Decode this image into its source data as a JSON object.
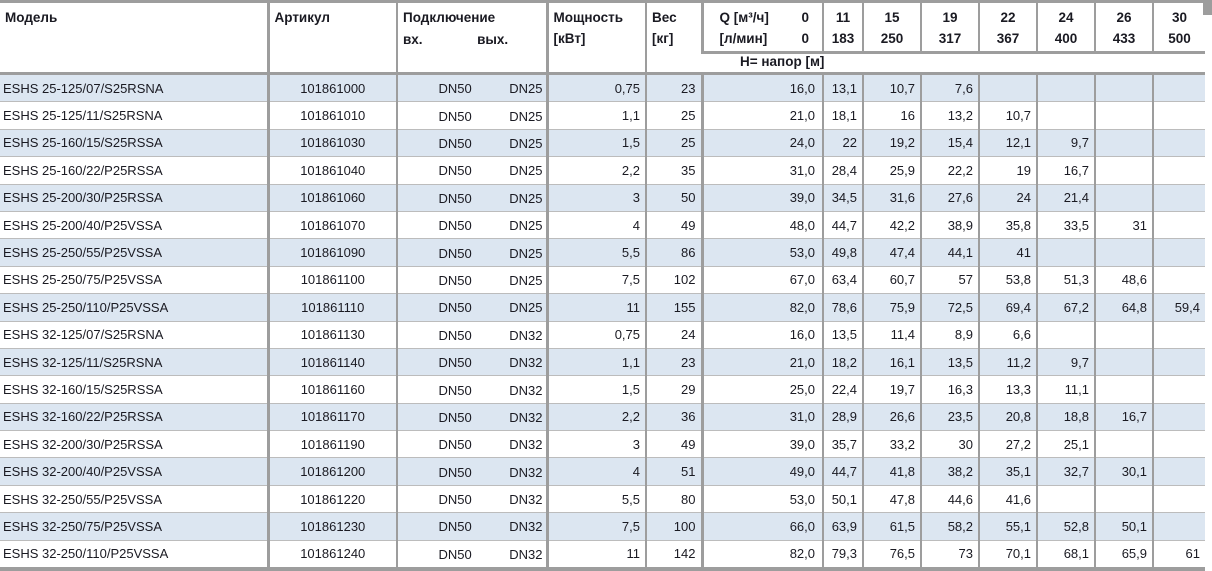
{
  "colors": {
    "stripe": "#dce6f1",
    "grid": "#9d9d9d",
    "text": "#1a1a22"
  },
  "table": {
    "headers": {
      "model": "Модель",
      "article": "Артикул",
      "connection": "Подключение",
      "inlet": "вх.",
      "outlet": "вых.",
      "power_line1": "Мощность",
      "power_line2": "[кВт]",
      "weight_line1": "Вес",
      "weight_line2": "[кг]",
      "q_label_line1": "Q [м³/ч]",
      "q_zero_line1": "0",
      "q_label_line2": "[л/мин]",
      "q_zero_line2": "0",
      "flow_cols": [
        {
          "m3h": "11",
          "lmin": "183"
        },
        {
          "m3h": "15",
          "lmin": "250"
        },
        {
          "m3h": "19",
          "lmin": "317"
        },
        {
          "m3h": "22",
          "lmin": "367"
        },
        {
          "m3h": "24",
          "lmin": "400"
        },
        {
          "m3h": "26",
          "lmin": "433"
        },
        {
          "m3h": "30",
          "lmin": "500"
        }
      ],
      "head_label": "H= напор [м]"
    },
    "rows": [
      {
        "model": "ESHS 25-125/07/S25RSNA",
        "article": "101861000",
        "inlet": "DN50",
        "outlet": "DN25",
        "power": "0,75",
        "weight": "23",
        "heads": [
          "16,0",
          "13,1",
          "10,7",
          "7,6",
          "",
          "",
          "",
          ""
        ]
      },
      {
        "model": "ESHS 25-125/11/S25RSNA",
        "article": "101861010",
        "inlet": "DN50",
        "outlet": "DN25",
        "power": "1,1",
        "weight": "25",
        "heads": [
          "21,0",
          "18,1",
          "16",
          "13,2",
          "10,7",
          "",
          "",
          ""
        ]
      },
      {
        "model": "ESHS 25-160/15/S25RSSA",
        "article": "101861030",
        "inlet": "DN50",
        "outlet": "DN25",
        "power": "1,5",
        "weight": "25",
        "heads": [
          "24,0",
          "22",
          "19,2",
          "15,4",
          "12,1",
          "9,7",
          "",
          ""
        ]
      },
      {
        "model": "ESHS 25-160/22/P25RSSA",
        "article": "101861040",
        "inlet": "DN50",
        "outlet": "DN25",
        "power": "2,2",
        "weight": "35",
        "heads": [
          "31,0",
          "28,4",
          "25,9",
          "22,2",
          "19",
          "16,7",
          "",
          ""
        ]
      },
      {
        "model": "ESHS 25-200/30/P25RSSA",
        "article": "101861060",
        "inlet": "DN50",
        "outlet": "DN25",
        "power": "3",
        "weight": "50",
        "heads": [
          "39,0",
          "34,5",
          "31,6",
          "27,6",
          "24",
          "21,4",
          "",
          ""
        ]
      },
      {
        "model": "ESHS 25-200/40/P25VSSA",
        "article": "101861070",
        "inlet": "DN50",
        "outlet": "DN25",
        "power": "4",
        "weight": "49",
        "heads": [
          "48,0",
          "44,7",
          "42,2",
          "38,9",
          "35,8",
          "33,5",
          "31",
          ""
        ]
      },
      {
        "model": "ESHS 25-250/55/P25VSSA",
        "article": "101861090",
        "inlet": "DN50",
        "outlet": "DN25",
        "power": "5,5",
        "weight": "86",
        "heads": [
          "53,0",
          "49,8",
          "47,4",
          "44,1",
          "41",
          "",
          "",
          ""
        ]
      },
      {
        "model": "ESHS 25-250/75/P25VSSA",
        "article": "101861100",
        "inlet": "DN50",
        "outlet": "DN25",
        "power": "7,5",
        "weight": "102",
        "heads": [
          "67,0",
          "63,4",
          "60,7",
          "57",
          "53,8",
          "51,3",
          "48,6",
          ""
        ]
      },
      {
        "model": "ESHS 25-250/110/P25VSSA",
        "article": "101861110",
        "inlet": "DN50",
        "outlet": "DN25",
        "power": "11",
        "weight": "155",
        "heads": [
          "82,0",
          "78,6",
          "75,9",
          "72,5",
          "69,4",
          "67,2",
          "64,8",
          "59,4"
        ]
      },
      {
        "model": "ESHS 32-125/07/S25RSNA",
        "article": "101861130",
        "inlet": "DN50",
        "outlet": "DN32",
        "power": "0,75",
        "weight": "24",
        "heads": [
          "16,0",
          "13,5",
          "11,4",
          "8,9",
          "6,6",
          "",
          "",
          ""
        ]
      },
      {
        "model": "ESHS 32-125/11/S25RSNA",
        "article": "101861140",
        "inlet": "DN50",
        "outlet": "DN32",
        "power": "1,1",
        "weight": "23",
        "heads": [
          "21,0",
          "18,2",
          "16,1",
          "13,5",
          "11,2",
          "9,7",
          "",
          ""
        ]
      },
      {
        "model": "ESHS 32-160/15/S25RSSA",
        "article": "101861160",
        "inlet": "DN50",
        "outlet": "DN32",
        "power": "1,5",
        "weight": "29",
        "heads": [
          "25,0",
          "22,4",
          "19,7",
          "16,3",
          "13,3",
          "11,1",
          "",
          ""
        ]
      },
      {
        "model": "ESHS 32-160/22/P25RSSA",
        "article": "101861170",
        "inlet": "DN50",
        "outlet": "DN32",
        "power": "2,2",
        "weight": "36",
        "heads": [
          "31,0",
          "28,9",
          "26,6",
          "23,5",
          "20,8",
          "18,8",
          "16,7",
          ""
        ]
      },
      {
        "model": "ESHS 32-200/30/P25RSSA",
        "article": "101861190",
        "inlet": "DN50",
        "outlet": "DN32",
        "power": "3",
        "weight": "49",
        "heads": [
          "39,0",
          "35,7",
          "33,2",
          "30",
          "27,2",
          "25,1",
          "",
          ""
        ]
      },
      {
        "model": "ESHS 32-200/40/P25VSSA",
        "article": "101861200",
        "inlet": "DN50",
        "outlet": "DN32",
        "power": "4",
        "weight": "51",
        "heads": [
          "49,0",
          "44,7",
          "41,8",
          "38,2",
          "35,1",
          "32,7",
          "30,1",
          ""
        ]
      },
      {
        "model": "ESHS 32-250/55/P25VSSA",
        "article": "101861220",
        "inlet": "DN50",
        "outlet": "DN32",
        "power": "5,5",
        "weight": "80",
        "heads": [
          "53,0",
          "50,1",
          "47,8",
          "44,6",
          "41,6",
          "",
          "",
          ""
        ]
      },
      {
        "model": "ESHS 32-250/75/P25VSSA",
        "article": "101861230",
        "inlet": "DN50",
        "outlet": "DN32",
        "power": "7,5",
        "weight": "100",
        "heads": [
          "66,0",
          "63,9",
          "61,5",
          "58,2",
          "55,1",
          "52,8",
          "50,1",
          ""
        ]
      },
      {
        "model": "ESHS 32-250/110/P25VSSA",
        "article": "101861240",
        "inlet": "DN50",
        "outlet": "DN32",
        "power": "11",
        "weight": "142",
        "heads": [
          "82,0",
          "79,3",
          "76,5",
          "73",
          "70,1",
          "68,1",
          "65,9",
          "61"
        ]
      }
    ]
  }
}
